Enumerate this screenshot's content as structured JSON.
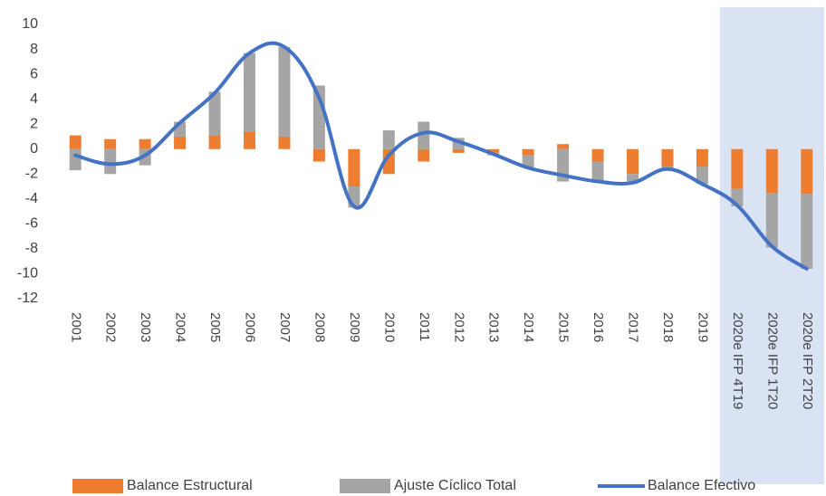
{
  "chart_data": {
    "type": "bar_line",
    "categories": [
      "2001",
      "2002",
      "2003",
      "2004",
      "2005",
      "2006",
      "2007",
      "2008",
      "2009",
      "2010",
      "2011",
      "2012",
      "2013",
      "2014",
      "2015",
      "2016",
      "2017",
      "2018",
      "2019",
      "2020e IFP 4T19",
      "2020e IFP 1T20",
      "2020e IFP 2T20"
    ],
    "series": [
      {
        "name": "Balance Estructural",
        "type": "bar",
        "color": "#ed7d31",
        "values": [
          1.1,
          0.8,
          0.8,
          1.0,
          1.1,
          1.4,
          1.0,
          -1.0,
          -3.0,
          -2.0,
          -1.0,
          -0.3,
          -0.3,
          -0.5,
          0.4,
          -1.0,
          -2.0,
          -1.4,
          -1.4,
          -3.2,
          -3.5,
          -3.6
        ]
      },
      {
        "name": "Ajuste Cíclico Total",
        "type": "bar",
        "color": "#a5a5a5",
        "values": [
          -1.7,
          -2.0,
          -1.3,
          1.2,
          3.5,
          6.3,
          7.2,
          5.1,
          -1.7,
          1.5,
          2.2,
          0.9,
          -0.2,
          -1.0,
          -2.6,
          -1.6,
          -0.6,
          -0.3,
          -1.4,
          -1.4,
          -4.4,
          -6.0
        ]
      },
      {
        "name": "Balance Efectivo",
        "type": "line",
        "color": "#4472c4",
        "values": [
          -0.5,
          -1.2,
          -0.5,
          2.1,
          4.5,
          7.7,
          8.2,
          4.1,
          -4.6,
          -0.5,
          1.3,
          0.6,
          -0.4,
          -1.5,
          -2.1,
          -2.6,
          -2.7,
          -1.6,
          -2.8,
          -4.5,
          -7.8,
          -9.6
        ]
      }
    ],
    "ylim": [
      -12,
      10
    ],
    "yticks": [
      -12,
      -10,
      -8,
      -6,
      -4,
      -2,
      0,
      2,
      4,
      6,
      8,
      10
    ],
    "grid": false,
    "legend": "bottom",
    "highlight": {
      "from_category": 19,
      "color": "#dae3f3"
    }
  }
}
